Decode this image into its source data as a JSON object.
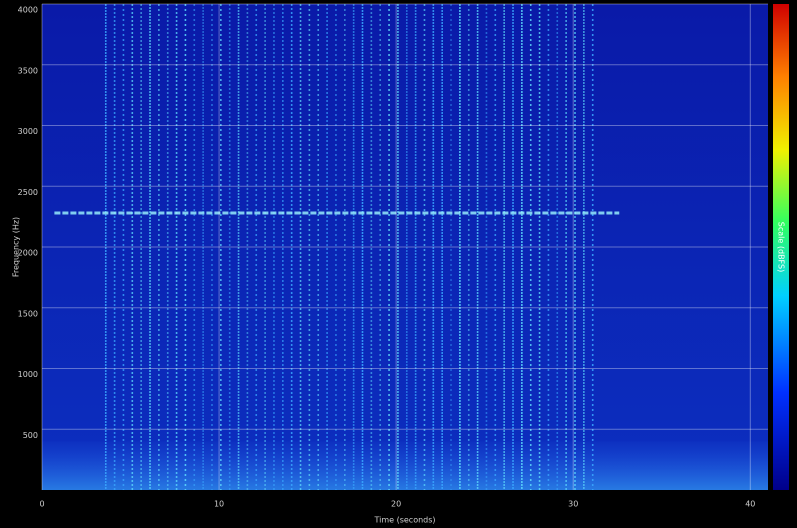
{
  "chart_data": {
    "type": "spectrogram",
    "x_label": "Time (seconds)",
    "y_label": "Frequency (Hz)",
    "colorbar_label": "Scale (dBFS)",
    "xlim": [
      0,
      41
    ],
    "xticks": [
      0,
      10,
      20,
      30,
      40
    ],
    "ylim": [
      0,
      4000
    ],
    "yticks": [
      500,
      1000,
      1500,
      2000,
      2500,
      3000,
      3500,
      4000
    ],
    "grid": true,
    "tone": {
      "frequency": 2280,
      "start": 0.7,
      "end": 32.6
    },
    "pulse_train": {
      "start": 3.6,
      "end": 31.4,
      "interval": 0.5
    },
    "noise_band": {
      "low": 0,
      "high": 400
    }
  }
}
